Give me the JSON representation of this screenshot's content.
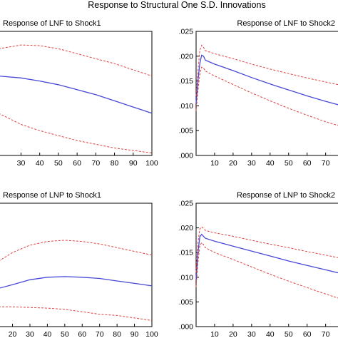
{
  "title": "Response to Structural One S.D. Innovations",
  "colors": {
    "response": "#4848d8",
    "band": "#e04040"
  },
  "chart_data": [
    {
      "type": "line",
      "title": "Response of LNF to Shock1",
      "x_ticks": [
        30,
        40,
        50,
        60,
        70,
        80,
        90,
        100
      ],
      "y_ticks": [],
      "xlim": [
        18,
        100
      ],
      "ylim": [
        0,
        1
      ],
      "grid": false,
      "series": [
        {
          "role": "response",
          "x": [
            18,
            30,
            40,
            50,
            60,
            70,
            80,
            90,
            100
          ],
          "y": [
            0.64,
            0.625,
            0.6,
            0.57,
            0.53,
            0.49,
            0.44,
            0.39,
            0.34
          ]
        },
        {
          "role": "upper-band",
          "x": [
            18,
            30,
            40,
            50,
            60,
            70,
            80,
            90,
            100
          ],
          "y": [
            0.86,
            0.89,
            0.885,
            0.86,
            0.82,
            0.78,
            0.74,
            0.69,
            0.64
          ]
        },
        {
          "role": "lower-band",
          "x": [
            18,
            30,
            40,
            50,
            60,
            70,
            80,
            90,
            100
          ],
          "y": [
            0.34,
            0.25,
            0.2,
            0.16,
            0.12,
            0.09,
            0.06,
            0.04,
            0.02
          ]
        }
      ]
    },
    {
      "type": "line",
      "title": "Response of LNF to Shock2",
      "x_ticks": [
        10,
        20,
        30,
        40,
        50,
        60,
        70
      ],
      "y_ticks": [
        ".000",
        ".005",
        ".010",
        ".015",
        ".020",
        ".025"
      ],
      "xlim": [
        0,
        79
      ],
      "ylim": [
        0,
        0.025
      ],
      "grid": false,
      "series": [
        {
          "role": "response",
          "x": [
            0,
            1,
            2,
            3,
            4,
            5,
            10,
            20,
            30,
            40,
            50,
            60,
            70,
            79
          ],
          "y": [
            0.0105,
            0.015,
            0.0185,
            0.0202,
            0.02,
            0.0192,
            0.0184,
            0.0171,
            0.0157,
            0.0144,
            0.0132,
            0.012,
            0.0109,
            0.01
          ]
        },
        {
          "role": "upper-band",
          "x": [
            0,
            1,
            2,
            3,
            4,
            5,
            10,
            20,
            30,
            40,
            50,
            60,
            70,
            79
          ],
          "y": [
            0.012,
            0.017,
            0.0212,
            0.0222,
            0.0218,
            0.0211,
            0.0205,
            0.0195,
            0.0184,
            0.0174,
            0.0165,
            0.0156,
            0.0148,
            0.0141
          ]
        },
        {
          "role": "lower-band",
          "x": [
            0,
            1,
            2,
            3,
            4,
            5,
            10,
            20,
            30,
            40,
            50,
            60,
            70,
            79
          ],
          "y": [
            0.009,
            0.013,
            0.0163,
            0.0178,
            0.0176,
            0.017,
            0.016,
            0.0143,
            0.0126,
            0.011,
            0.0095,
            0.0081,
            0.0068,
            0.0058
          ]
        }
      ]
    },
    {
      "type": "line",
      "title": "Response of LNP to Shock1",
      "x_ticks": [
        20,
        30,
        40,
        50,
        60,
        70,
        80,
        90,
        100
      ],
      "y_ticks": [],
      "xlim": [
        12,
        100
      ],
      "ylim": [
        0,
        1
      ],
      "grid": false,
      "series": [
        {
          "role": "response",
          "x": [
            12,
            20,
            30,
            40,
            50,
            60,
            70,
            80,
            90,
            100
          ],
          "y": [
            0.31,
            0.34,
            0.38,
            0.4,
            0.405,
            0.4,
            0.39,
            0.37,
            0.35,
            0.33
          ]
        },
        {
          "role": "upper-band",
          "x": [
            12,
            20,
            30,
            40,
            50,
            60,
            70,
            80,
            90,
            100
          ],
          "y": [
            0.53,
            0.6,
            0.66,
            0.69,
            0.7,
            0.69,
            0.67,
            0.64,
            0.61,
            0.58
          ]
        },
        {
          "role": "lower-band",
          "x": [
            12,
            20,
            30,
            40,
            50,
            60,
            70,
            80,
            90,
            100
          ],
          "y": [
            0.16,
            0.16,
            0.155,
            0.15,
            0.14,
            0.12,
            0.1,
            0.09,
            0.07,
            0.05
          ]
        }
      ]
    },
    {
      "type": "line",
      "title": "Response of LNP to Shock2",
      "x_ticks": [
        10,
        20,
        30,
        40,
        50,
        60,
        70
      ],
      "y_ticks": [
        ".000",
        ".005",
        ".010",
        ".015",
        ".020",
        ".025"
      ],
      "xlim": [
        0,
        79
      ],
      "ylim": [
        0,
        0.025
      ],
      "grid": false,
      "series": [
        {
          "role": "response",
          "x": [
            0,
            1,
            2,
            3,
            4,
            5,
            10,
            20,
            30,
            40,
            50,
            60,
            70,
            79
          ],
          "y": [
            0.0095,
            0.015,
            0.0182,
            0.0187,
            0.0183,
            0.0179,
            0.0173,
            0.0163,
            0.0153,
            0.0143,
            0.0133,
            0.0124,
            0.0115,
            0.0107
          ]
        },
        {
          "role": "upper-band",
          "x": [
            0,
            1,
            2,
            3,
            4,
            5,
            10,
            20,
            30,
            40,
            50,
            60,
            70,
            79
          ],
          "y": [
            0.011,
            0.017,
            0.0198,
            0.0202,
            0.0199,
            0.0195,
            0.019,
            0.0183,
            0.0175,
            0.0167,
            0.016,
            0.0152,
            0.0145,
            0.0138
          ]
        },
        {
          "role": "lower-band",
          "x": [
            0,
            1,
            2,
            3,
            4,
            5,
            10,
            20,
            30,
            40,
            50,
            60,
            70,
            79
          ],
          "y": [
            0.008,
            0.013,
            0.0164,
            0.017,
            0.0166,
            0.016,
            0.015,
            0.0136,
            0.0121,
            0.0106,
            0.0092,
            0.0079,
            0.0066,
            0.0055
          ]
        }
      ]
    }
  ]
}
